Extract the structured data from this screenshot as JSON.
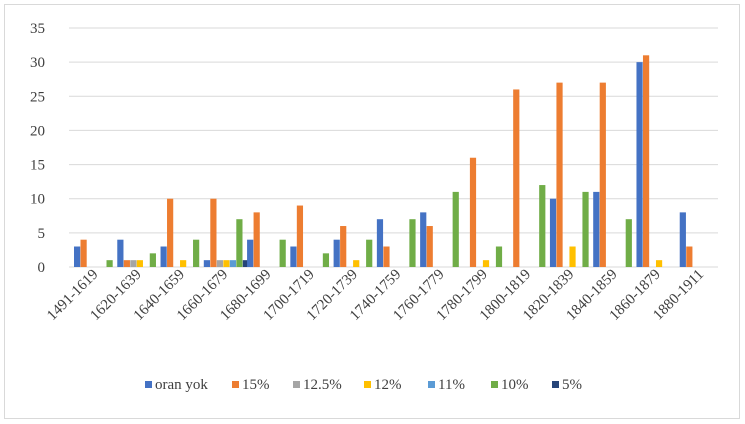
{
  "chart_data": {
    "type": "bar",
    "title": "",
    "xlabel": "",
    "ylabel": "",
    "ylim": [
      0,
      35
    ],
    "yticks": [
      0,
      5,
      10,
      15,
      20,
      25,
      30,
      35
    ],
    "grid": "horizontal",
    "legend_position": "bottom",
    "categories": [
      "1491-1619",
      "1620-1639",
      "1640-1659",
      "1660-1679",
      "1680-1699",
      "1700-1719",
      "1720-1739",
      "1740-1759",
      "1760-1779",
      "1780-1799",
      "1800-1819",
      "1820-1839",
      "1840-1859",
      "1860-1879",
      "1880-1911"
    ],
    "series": [
      {
        "name": "oran yok",
        "color": "#4472C4",
        "values": [
          3,
          4,
          3,
          1,
          4,
          3,
          4,
          7,
          8,
          0,
          0,
          10,
          11,
          30,
          8
        ]
      },
      {
        "name": "15%",
        "color": "#ED7D31",
        "values": [
          4,
          1,
          10,
          10,
          8,
          9,
          6,
          3,
          6,
          16,
          26,
          27,
          27,
          31,
          3
        ]
      },
      {
        "name": "12.5%",
        "color": "#A5A5A5",
        "values": [
          0,
          1,
          0,
          1,
          0,
          0,
          0,
          0,
          0,
          0,
          0,
          0,
          0,
          0,
          0
        ]
      },
      {
        "name": "12%",
        "color": "#FFC000",
        "values": [
          0,
          1,
          1,
          1,
          0,
          0,
          1,
          0,
          0,
          1,
          0,
          3,
          0,
          1,
          0
        ]
      },
      {
        "name": "11%",
        "color": "#5B9BD5",
        "values": [
          0,
          0,
          0,
          1,
          0,
          0,
          0,
          0,
          0,
          0,
          0,
          0,
          0,
          0,
          0
        ]
      },
      {
        "name": "10%",
        "color": "#70AD47",
        "values": [
          1,
          2,
          4,
          7,
          4,
          2,
          4,
          7,
          11,
          3,
          12,
          11,
          7,
          0,
          0
        ]
      },
      {
        "name": "5%",
        "color": "#264478",
        "values": [
          0,
          0,
          0,
          1,
          0,
          0,
          0,
          0,
          0,
          0,
          0,
          0,
          0,
          0,
          0
        ]
      }
    ]
  }
}
